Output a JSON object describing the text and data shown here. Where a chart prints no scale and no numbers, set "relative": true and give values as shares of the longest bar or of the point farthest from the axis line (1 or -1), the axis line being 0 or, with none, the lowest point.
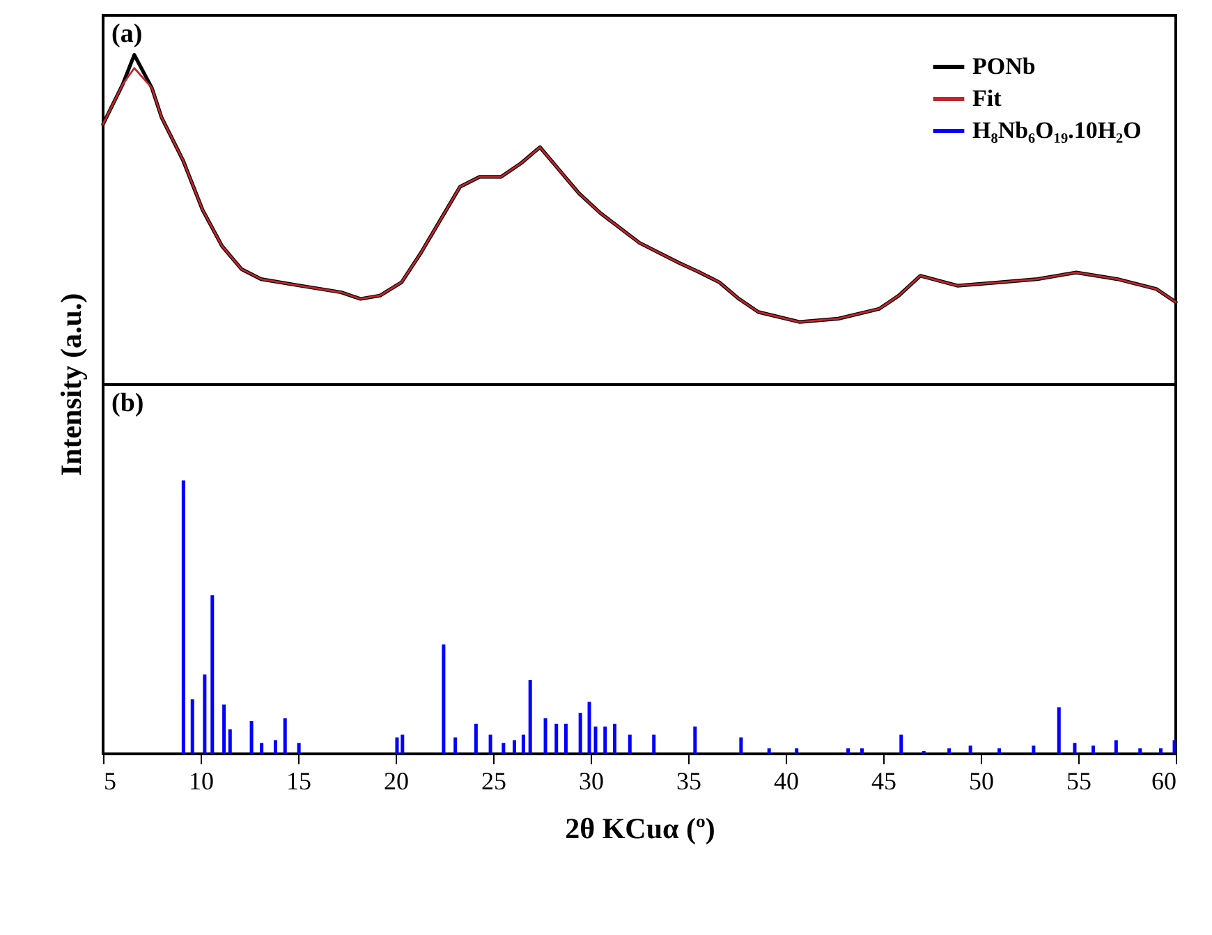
{
  "chart_data": [
    {
      "type": "line",
      "ylabel": "Intensity (a.u.)",
      "annotations": [
        "(a)"
      ],
      "relative": true,
      "legend": "top right",
      "tick_labels": false,
      "xlim": [
        5,
        60
      ],
      "line_style": "solid",
      "x": [
        5,
        6,
        6.6,
        7.5,
        8,
        9.1,
        10.1,
        11.1,
        12.1,
        13.1,
        15.1,
        17.2,
        18.2,
        19.2,
        20.3,
        21.3,
        22.3,
        23.3,
        24.3,
        25.4,
        26.4,
        27.4,
        28.4,
        29.4,
        30.5,
        32.5,
        34.5,
        35.6,
        36.6,
        37.6,
        38.6,
        40.7,
        42.7,
        44.8,
        45.8,
        46.9,
        48.8,
        50.9,
        52.9,
        54.9,
        57,
        59,
        60
      ],
      "series": [
        {
          "name": "PONb",
          "color": "#000000",
          "values": [
            0.79,
            0.91,
            1.0,
            0.9,
            0.81,
            0.68,
            0.53,
            0.42,
            0.35,
            0.32,
            0.3,
            0.28,
            0.26,
            0.27,
            0.31,
            0.4,
            0.5,
            0.6,
            0.63,
            0.63,
            0.67,
            0.72,
            0.65,
            0.58,
            0.52,
            0.43,
            0.37,
            0.34,
            0.31,
            0.26,
            0.22,
            0.19,
            0.2,
            0.23,
            0.27,
            0.33,
            0.3,
            0.31,
            0.32,
            0.34,
            0.32,
            0.29,
            0.25
          ]
        },
        {
          "name": "Fit",
          "color": "#c0272d",
          "values": [
            0.79,
            0.91,
            0.96,
            0.9,
            0.81,
            0.68,
            0.53,
            0.42,
            0.35,
            0.32,
            0.3,
            0.28,
            0.26,
            0.27,
            0.31,
            0.4,
            0.5,
            0.6,
            0.63,
            0.63,
            0.67,
            0.72,
            0.65,
            0.58,
            0.52,
            0.43,
            0.37,
            0.34,
            0.31,
            0.26,
            0.22,
            0.19,
            0.2,
            0.23,
            0.27,
            0.33,
            0.3,
            0.31,
            0.32,
            0.34,
            0.32,
            0.29,
            0.25
          ]
        }
      ]
    },
    {
      "type": "bar",
      "xlabel": "2θ KCuα (º)",
      "annotations": [
        "(b)"
      ],
      "relative": true,
      "tick_labels": "x",
      "xlim": [
        5,
        60
      ],
      "xticks": [
        5,
        10,
        15,
        20,
        25,
        30,
        35,
        40,
        45,
        50,
        55,
        60
      ],
      "x": [
        9.12,
        9.58,
        10.21,
        10.6,
        11.2,
        11.51,
        12.61,
        13.13,
        13.84,
        14.33,
        15.04,
        20.07,
        20.35,
        22.46,
        23.06,
        24.12,
        24.86,
        25.53,
        26.09,
        26.55,
        26.9,
        27.68,
        28.24,
        28.73,
        29.47,
        29.93,
        30.25,
        30.74,
        31.23,
        32.01,
        33.24,
        35.35,
        37.71,
        39.15,
        40.56,
        43.2,
        43.91,
        45.92,
        47.08,
        48.38,
        49.47,
        50.95,
        52.71,
        54.01,
        54.82,
        55.77,
        56.94,
        58.17,
        59.23,
        59.93
      ],
      "series": [
        {
          "name": "H₈Nb₆O₁₉.10H₂O",
          "color": "#0000ff",
          "values": [
            1.0,
            0.2,
            0.29,
            0.58,
            0.18,
            0.09,
            0.12,
            0.04,
            0.05,
            0.13,
            0.04,
            0.06,
            0.07,
            0.4,
            0.06,
            0.11,
            0.07,
            0.04,
            0.05,
            0.07,
            0.27,
            0.13,
            0.11,
            0.11,
            0.15,
            0.19,
            0.1,
            0.1,
            0.11,
            0.07,
            0.07,
            0.1,
            0.06,
            0.02,
            0.02,
            0.02,
            0.02,
            0.07,
            0.01,
            0.02,
            0.03,
            0.02,
            0.03,
            0.17,
            0.04,
            0.03,
            0.05,
            0.02,
            0.02,
            0.05
          ]
        }
      ]
    }
  ]
}
